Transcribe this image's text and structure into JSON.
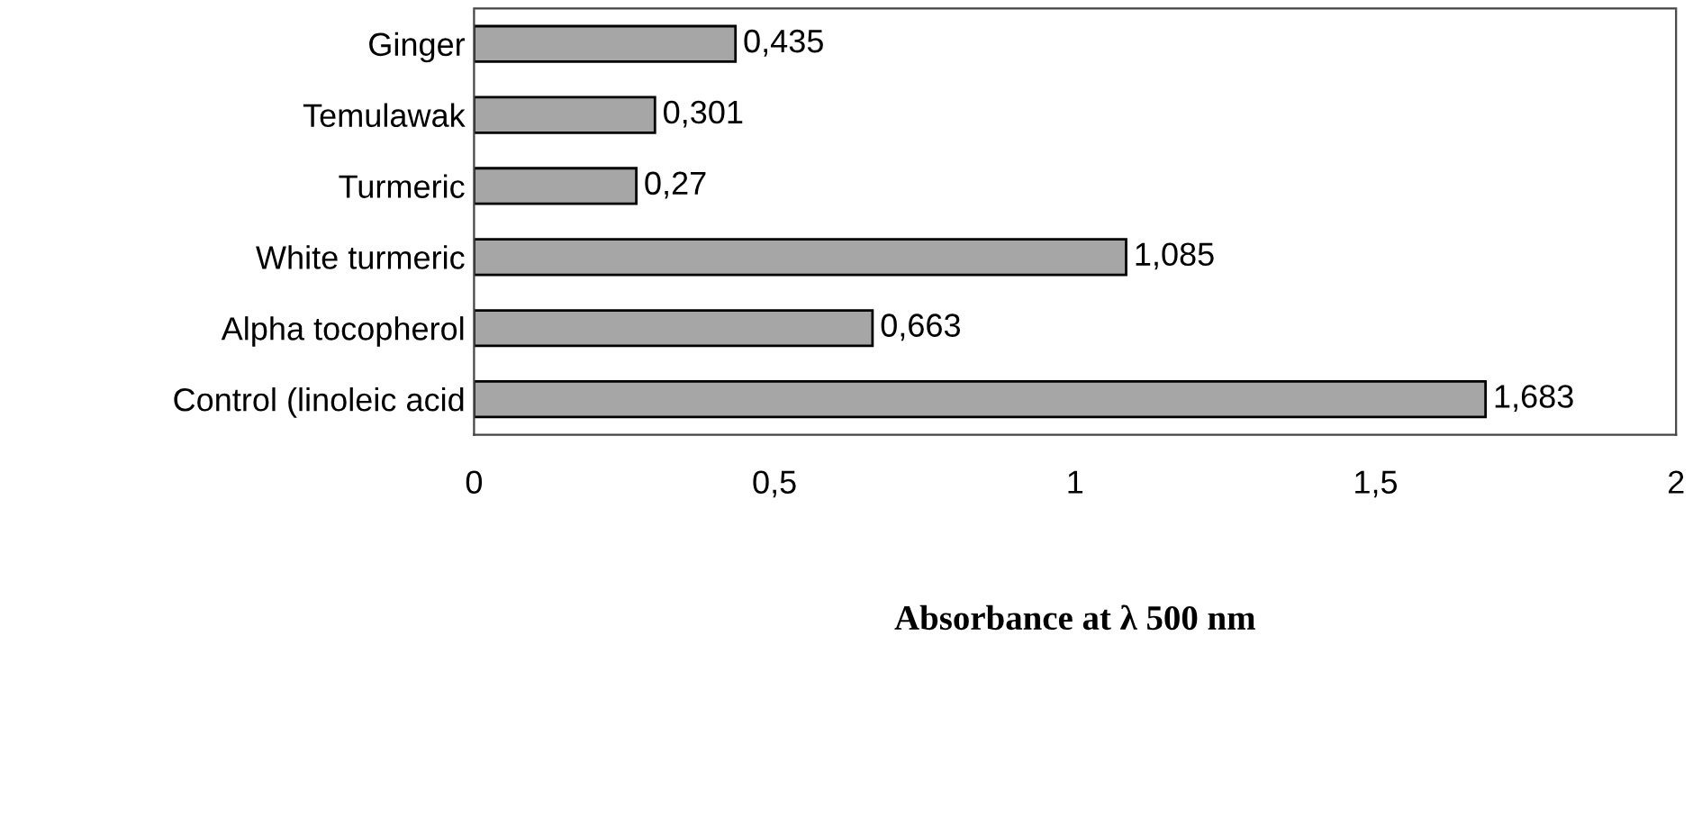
{
  "chart_data": {
    "type": "bar",
    "orientation": "horizontal",
    "categories": [
      "Ginger",
      "Temulawak",
      "Turmeric",
      "White turmeric",
      "Alpha tocopherol",
      "Control (linoleic acid"
    ],
    "values": [
      0.435,
      0.301,
      0.27,
      1.085,
      0.663,
      1.683
    ],
    "value_labels": [
      "0,435",
      "0,301",
      "0,27",
      "1,085",
      "0,663",
      "1,683"
    ],
    "color": "#a6a6a6",
    "xlabel": "Absorbance at λ 500 nm",
    "xlim": [
      0,
      2
    ],
    "xticks": [
      0,
      {
        "value": 0.5,
        "label": "0,5"
      },
      1,
      {
        "value": 1.5,
        "label": "1,5"
      },
      2
    ],
    "grid": false
  }
}
